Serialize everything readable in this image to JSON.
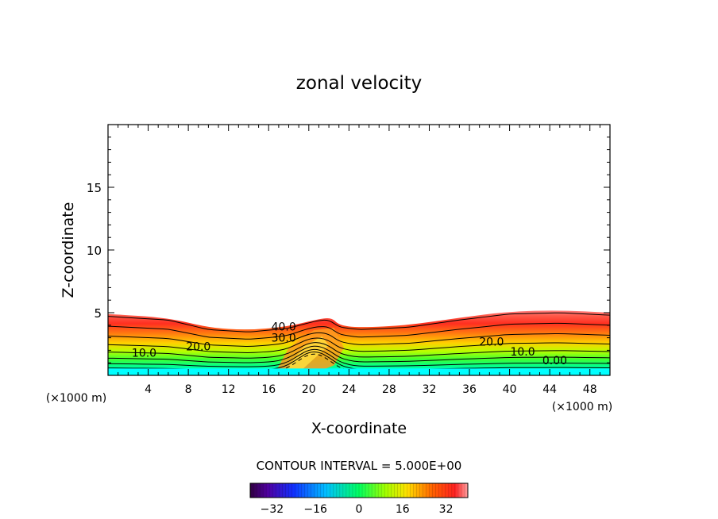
{
  "chart_data": {
    "type": "contour",
    "title": "zonal velocity",
    "xlabel": "X-coordinate",
    "ylabel": "Z-coordinate",
    "x_unit": "(×1000 m)",
    "xlim": [
      0,
      50
    ],
    "ylim": [
      0,
      20
    ],
    "x_ticks": [
      "4",
      "8",
      "12",
      "16",
      "20",
      "24",
      "28",
      "32",
      "36",
      "40",
      "44",
      "48"
    ],
    "y_ticks": [
      "5",
      "10",
      "15"
    ],
    "contour_interval_text": "CONTOUR INTERVAL = 5.000E+00",
    "contour_labels": [
      {
        "text": "40.0",
        "x": 17.5,
        "z": 3.9
      },
      {
        "text": "30.0",
        "x": 17.5,
        "z": 3.0
      },
      {
        "text": "20.0",
        "x": 9.0,
        "z": 2.3
      },
      {
        "text": "10.0",
        "x": 3.6,
        "z": 1.8
      },
      {
        "text": "20.0",
        "x": 38.2,
        "z": 2.7
      },
      {
        "text": "10.0",
        "x": 41.3,
        "z": 1.9
      },
      {
        "text": "0.00",
        "x": 44.5,
        "z": 1.2
      }
    ],
    "top_profile": [
      [
        0,
        4.9
      ],
      [
        6,
        4.6
      ],
      [
        10,
        3.8
      ],
      [
        14,
        3.6
      ],
      [
        18,
        3.9
      ],
      [
        21,
        4.5
      ],
      [
        22.3,
        4.6
      ],
      [
        23,
        4.0
      ],
      [
        25,
        3.8
      ],
      [
        30,
        4.0
      ],
      [
        35,
        4.6
      ],
      [
        40,
        5.1
      ],
      [
        45,
        5.2
      ],
      [
        50,
        5.0
      ]
    ],
    "colorbar": {
      "min": -40,
      "max": 40,
      "ticks": [
        "-32",
        "-16",
        "0",
        "16",
        "32"
      ]
    },
    "colors": {
      "ground": "#00ffff",
      "warm": "#ff4020",
      "cool": "#00ff90"
    }
  }
}
